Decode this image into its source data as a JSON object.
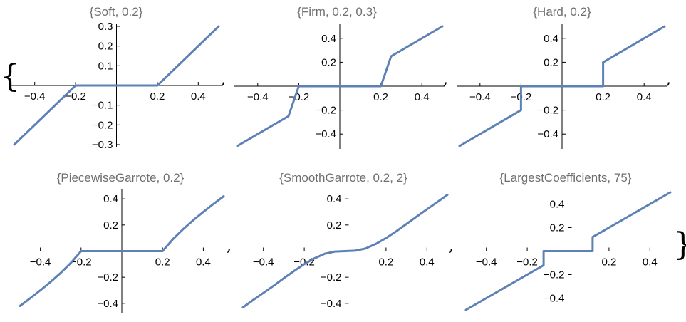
{
  "brackets": {
    "open": "{",
    "close": "}",
    "comma": ","
  },
  "colors": {
    "series": "#5e81b5",
    "title": "#6f6f6f"
  },
  "chart_data": [
    {
      "type": "line",
      "title": "{Soft, 0.2}",
      "xlim": [
        -0.5,
        0.5
      ],
      "ylim": [
        -0.3,
        0.3
      ],
      "xticks": [
        -0.4,
        -0.2,
        0.2,
        0.4
      ],
      "xtick_labels": [
        "−0.4",
        "−0.2",
        "0.2",
        "0.4"
      ],
      "yticks": [
        -0.3,
        -0.2,
        -0.1,
        0.1,
        0.2,
        0.3
      ],
      "ytick_labels": [
        "−0.3",
        "−0.2",
        "−0.1",
        "0.1",
        "0.2",
        "0.3"
      ],
      "x": [
        -0.5,
        -0.2,
        0.2,
        0.5
      ],
      "y": [
        -0.3,
        0,
        0,
        0.3
      ]
    },
    {
      "type": "line",
      "title": "{Firm, 0.2, 0.3}",
      "xlim": [
        -0.5,
        0.5
      ],
      "ylim": [
        -0.5,
        0.5
      ],
      "xticks": [
        -0.4,
        -0.2,
        0.2,
        0.4
      ],
      "xtick_labels": [
        "−0.4",
        "−0.2",
        "0.2",
        "0.4"
      ],
      "yticks": [
        -0.4,
        -0.2,
        0.2,
        0.4
      ],
      "ytick_labels": [
        "−0.4",
        "−0.2",
        "0.2",
        "0.4"
      ],
      "x": [
        -0.5,
        -0.25,
        -0.2,
        0.2,
        0.25,
        0.5
      ],
      "y": [
        -0.5,
        -0.25,
        0,
        0,
        0.25,
        0.5
      ]
    },
    {
      "type": "line",
      "title": "{Hard, 0.2}",
      "xlim": [
        -0.5,
        0.5
      ],
      "ylim": [
        -0.5,
        0.5
      ],
      "xticks": [
        -0.4,
        -0.2,
        0.2,
        0.4
      ],
      "xtick_labels": [
        "−0.4",
        "−0.2",
        "0.2",
        "0.4"
      ],
      "yticks": [
        -0.4,
        -0.2,
        0.2,
        0.4
      ],
      "ytick_labels": [
        "−0.4",
        "−0.2",
        "0.2",
        "0.4"
      ],
      "x": [
        -0.5,
        -0.2,
        -0.2,
        0.2,
        0.2,
        0.5
      ],
      "y": [
        -0.5,
        -0.2,
        0,
        0,
        0.2,
        0.5
      ]
    },
    {
      "type": "line",
      "title": "{PiecewiseGarrote, 0.2}",
      "xlim": [
        -0.5,
        0.5
      ],
      "ylim": [
        -0.45,
        0.45
      ],
      "xticks": [
        -0.4,
        -0.2,
        0.2,
        0.4
      ],
      "xtick_labels": [
        "−0.4",
        "−0.2",
        "0.2",
        "0.4"
      ],
      "yticks": [
        -0.4,
        -0.2,
        0.2,
        0.4
      ],
      "ytick_labels": [
        "−0.4",
        "−0.2",
        "0.2",
        "0.4"
      ],
      "x": [
        -0.5,
        -0.45,
        -0.4,
        -0.35,
        -0.3,
        -0.25,
        -0.2,
        0,
        0.2,
        0.25,
        0.3,
        0.35,
        0.4,
        0.45,
        0.5
      ],
      "y": [
        -0.42,
        -0.361,
        -0.3,
        -0.236,
        -0.167,
        -0.09,
        0,
        0,
        0,
        0.09,
        0.167,
        0.236,
        0.3,
        0.361,
        0.42
      ]
    },
    {
      "type": "line",
      "title": "{SmoothGarrote, 0.2, 2}",
      "xlim": [
        -0.5,
        0.5
      ],
      "ylim": [
        -0.45,
        0.45
      ],
      "xticks": [
        -0.4,
        -0.2,
        0.2,
        0.4
      ],
      "xtick_labels": [
        "−0.4",
        "−0.2",
        "0.2",
        "0.4"
      ],
      "yticks": [
        -0.4,
        -0.2,
        0.2,
        0.4
      ],
      "ytick_labels": [
        "−0.4",
        "−0.2",
        "0.2",
        "0.4"
      ],
      "x": [
        -0.5,
        -0.45,
        -0.4,
        -0.35,
        -0.3,
        -0.25,
        -0.2,
        -0.15,
        -0.1,
        -0.05,
        0,
        0.05,
        0.1,
        0.15,
        0.2,
        0.25,
        0.3,
        0.35,
        0.4,
        0.45,
        0.5
      ],
      "y": [
        -0.431,
        -0.374,
        -0.32,
        -0.265,
        -0.208,
        -0.152,
        -0.1,
        -0.055,
        -0.02,
        -0.003,
        0,
        0.003,
        0.02,
        0.055,
        0.1,
        0.152,
        0.208,
        0.265,
        0.32,
        0.374,
        0.431
      ]
    },
    {
      "type": "line",
      "title": "{LargestCoefficients, 75}",
      "xlim": [
        -0.5,
        0.5
      ],
      "ylim": [
        -0.5,
        0.5
      ],
      "xticks": [
        -0.4,
        -0.2,
        0.2,
        0.4
      ],
      "xtick_labels": [
        "−0.4",
        "−0.2",
        "0.2",
        "0.4"
      ],
      "yticks": [
        -0.4,
        -0.2,
        0.2,
        0.4
      ],
      "ytick_labels": [
        "−0.4",
        "−0.2",
        "0.2",
        "0.4"
      ],
      "x": [
        -0.5,
        -0.12,
        -0.12,
        0.12,
        0.12,
        0.5
      ],
      "y": [
        -0.5,
        -0.12,
        0,
        0,
        0.12,
        0.5
      ]
    }
  ]
}
